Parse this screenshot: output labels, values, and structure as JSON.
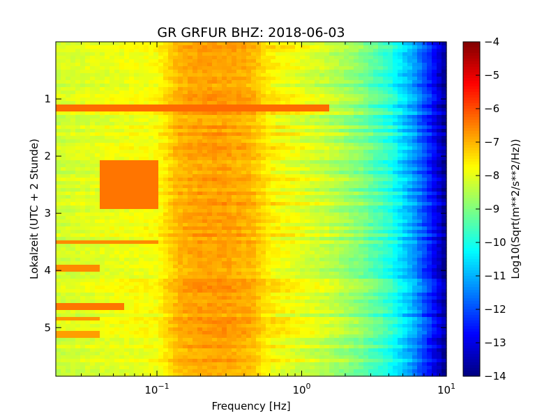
{
  "chart_data": {
    "type": "heatmap",
    "title": "GR GRFUR BHZ: 2018-06-03",
    "xlabel": "Frequency [Hz]",
    "ylabel": "Lokalzeit (UTC + 2 Stunde)",
    "x_scale": "log",
    "xlim": [
      0.02,
      10
    ],
    "x_ticks": [
      {
        "value": 0.1,
        "base": "10",
        "exp": "−1"
      },
      {
        "value": 1,
        "base": "10",
        "exp": "0"
      },
      {
        "value": 10,
        "base": "10",
        "exp": "1"
      }
    ],
    "ylim": [
      0,
      5.85
    ],
    "y_inverted": true,
    "y_ticks": [
      "1",
      "2",
      "3",
      "4",
      "5"
    ],
    "colorbar": {
      "label": "Log10(Sqrt(m**2/s**2/Hz))",
      "colormap": "jet",
      "range": [
        -14,
        -4
      ],
      "ticks": [
        "−4",
        "−5",
        "−6",
        "−7",
        "−8",
        "−9",
        "−10",
        "−11",
        "−12",
        "−13",
        "−14"
      ]
    },
    "grid": false,
    "spectrum_profile": {
      "frequency_hz": [
        0.02,
        0.04,
        0.06,
        0.1,
        0.14,
        0.2,
        0.3,
        0.45,
        0.6,
        1.0,
        1.5,
        2.5,
        4.0,
        6.0,
        8.0,
        10.0
      ],
      "log_amplitude": [
        -8.2,
        -8.0,
        -7.9,
        -7.8,
        -7.0,
        -6.8,
        -6.8,
        -7.0,
        -7.6,
        -8.0,
        -8.3,
        -8.9,
        -9.8,
        -11.2,
        -12.6,
        -13.8
      ]
    },
    "features": [
      {
        "time": 1.15,
        "f_min": 0.02,
        "f_max": 1.5,
        "log_amplitude": -6.3
      },
      {
        "time_range": [
          2.1,
          2.9
        ],
        "f_min": 0.04,
        "f_max": 0.1,
        "log_amplitude": -6.4
      },
      {
        "time": 3.5,
        "f_min": 0.02,
        "f_max": 0.1,
        "log_amplitude": -6.6
      },
      {
        "time": 3.97,
        "f_min": 0.02,
        "f_max": 0.04,
        "log_amplitude": -6.6
      },
      {
        "time": 4.62,
        "f_min": 0.02,
        "f_max": 0.06,
        "log_amplitude": -6.4
      },
      {
        "time": 4.85,
        "f_min": 0.02,
        "f_max": 0.04,
        "log_amplitude": -6.7
      },
      {
        "time": 5.12,
        "f_min": 0.02,
        "f_max": 0.04,
        "log_amplitude": -6.8
      }
    ]
  }
}
